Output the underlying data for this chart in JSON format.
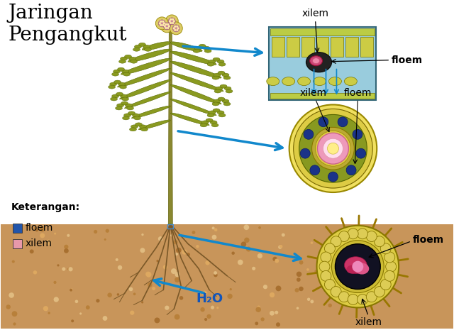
{
  "title": "Jaringan\nPengangkut",
  "title_fontsize": 20,
  "bg_color": "#ffffff",
  "legend_title": "Keterangan:",
  "legend_items": [
    {
      "label": "floem",
      "color": "#2255aa"
    },
    {
      "label": "xilem",
      "color": "#e899aa"
    }
  ],
  "labels": {
    "leaf_xilem": "xilem",
    "leaf_floem": "floem",
    "stem_xilem": "xilem",
    "stem_floem": "floem",
    "root_floem": "floem",
    "root_xilem": "xilem",
    "water": "H₂O"
  },
  "arrow_color": "#1188cc",
  "soil_color": "#c8955a",
  "floem_dot_color": "#1a3388",
  "cell_yellow": "#cccc44",
  "cell_green": "#99aa22",
  "outer_yellow": "#ddcc55",
  "pink_xilem": "#ee99bb",
  "light_blue_bg": "#99ccdd"
}
